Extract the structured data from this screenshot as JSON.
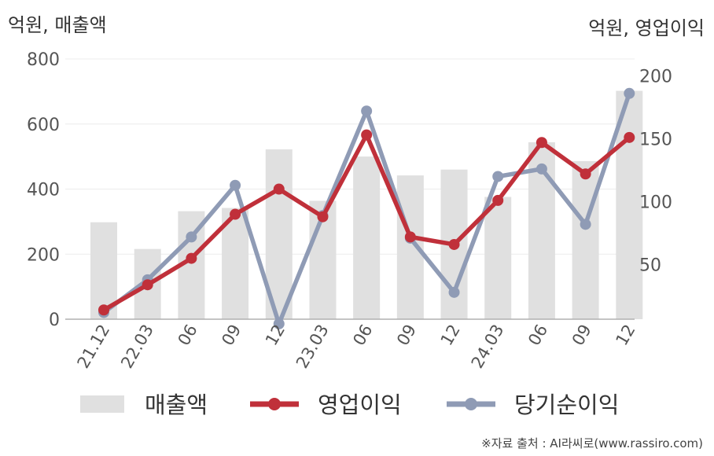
{
  "units": {
    "left": "억원, 매출액",
    "right": "억원, 영업이익"
  },
  "source": "※자료 출처 : AI라씨로(www.rassiro.com)",
  "chart_data": {
    "type": "bar",
    "categories": [
      "21.12",
      "22.03",
      "06",
      "09",
      "12",
      "23.03",
      "06",
      "09",
      "12",
      "24.03",
      "06",
      "09",
      "12"
    ],
    "series": [
      {
        "name": "매출액",
        "type": "bar",
        "axis": "left",
        "color": "#e0e0e0",
        "values": [
          298,
          216,
          332,
          342,
          522,
          364,
          500,
          442,
          460,
          376,
          544,
          486,
          702
        ]
      },
      {
        "name": "영업이익",
        "type": "line",
        "axis": "right",
        "color": "#c0303a",
        "values": [
          14,
          34,
          55,
          90,
          110,
          88,
          153,
          72,
          66,
          101,
          147,
          122,
          151
        ]
      },
      {
        "name": "당기순이익",
        "type": "line",
        "axis": "right",
        "color": "#8f9bb5",
        "values": [
          12,
          38,
          72,
          113,
          3,
          89,
          172,
          71,
          28,
          120,
          126,
          82,
          186
        ]
      }
    ],
    "ylim_left": [
      0,
      800
    ],
    "yticks_left": [
      "800",
      "600",
      "400",
      "200",
      "0"
    ],
    "ylim_right": [
      6.67,
      213.33
    ],
    "yticks_right": [
      "200",
      "150",
      "100",
      "50"
    ],
    "grid": true,
    "legend": "bottom"
  }
}
